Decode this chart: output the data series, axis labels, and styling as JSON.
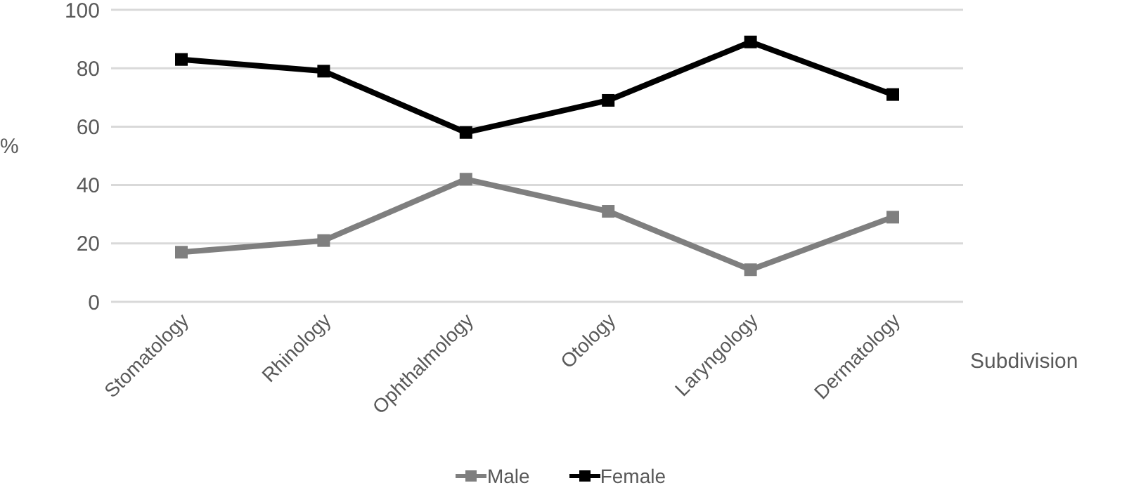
{
  "chart_data": {
    "type": "line",
    "ylabel": "%",
    "xlabel": "Subdivision",
    "categories": [
      "Stomatology",
      "Rhinology",
      "Ophthalmology",
      "Otology",
      "Laryngology",
      "Dermatology"
    ],
    "series": [
      {
        "name": "Male",
        "color": "#7f7f7f",
        "values": [
          17,
          21,
          42,
          31,
          11,
          29
        ]
      },
      {
        "name": "Female",
        "color": "#000000",
        "values": [
          83,
          79,
          58,
          69,
          89,
          71
        ]
      }
    ],
    "ylim": [
      0,
      100
    ],
    "yticks": [
      0,
      20,
      40,
      60,
      80,
      100
    ],
    "grid": "y",
    "legend": "bottom",
    "marker": "square",
    "line_style": "solid"
  }
}
